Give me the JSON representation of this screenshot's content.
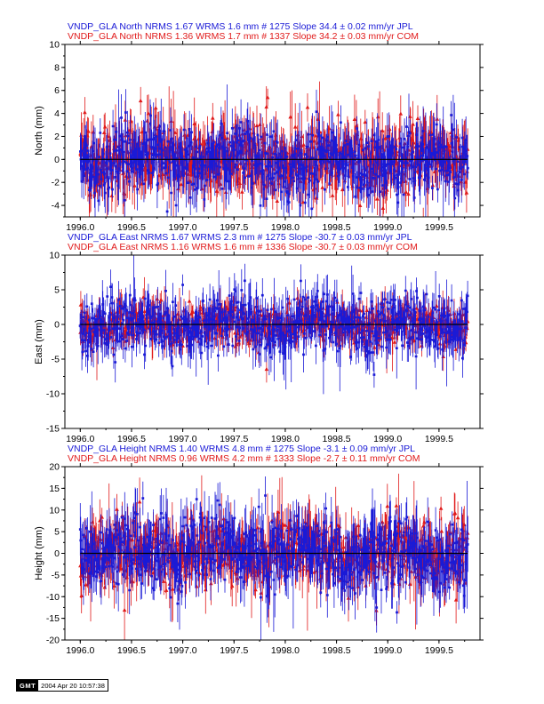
{
  "colors": {
    "jpl": "#1a1ad6",
    "com": "#e01a1a",
    "axis": "#000000"
  },
  "stamp": {
    "logo": "GMT",
    "timestamp": "2004 Apr 20 10:57:38"
  },
  "chart_data": [
    {
      "type": "scatter",
      "component": "North",
      "ylabel": "North (mm)",
      "ylim": [
        -5,
        10
      ],
      "yticks": [
        -4,
        -2,
        0,
        2,
        4,
        6,
        8,
        10
      ],
      "xlim": [
        1995.85,
        1999.9
      ],
      "xticks": [
        1996.0,
        1996.5,
        1997.0,
        1997.5,
        1998.0,
        1998.5,
        1999.0,
        1999.5
      ],
      "title_lines": [
        {
          "text": "VNDP_GLA North NRMS 1.67 WRMS  1.6 mm # 1275 Slope   34.4 ±  0.02 mm/yr JPL",
          "series": "JPL"
        },
        {
          "text": "VNDP_GLA North NRMS 1.36 WRMS  1.7 mm # 1337 Slope  34.2 ±  0.03 mm/yr COM",
          "series": "COM"
        }
      ],
      "series": [
        {
          "name": "JPL",
          "count": 1275,
          "wrms": 1.6,
          "x_range": [
            1996.0,
            1999.78
          ]
        },
        {
          "name": "COM",
          "count": 1337,
          "wrms": 1.7,
          "x_range": [
            1996.0,
            1999.78
          ]
        }
      ]
    },
    {
      "type": "scatter",
      "component": "East",
      "ylabel": "East (mm)",
      "ylim": [
        -15,
        10
      ],
      "yticks": [
        -15,
        -10,
        -5,
        0,
        5,
        10
      ],
      "xlim": [
        1995.85,
        1999.9
      ],
      "xticks": [
        1996.0,
        1996.5,
        1997.0,
        1997.5,
        1998.0,
        1998.5,
        1999.0,
        1999.5
      ],
      "title_lines": [
        {
          "text": "VNDP_GLA East NRMS 1.67 WRMS  2.3 mm # 1275 Slope  -30.7 ±  0.03 mm/yr JPL",
          "series": "JPL"
        },
        {
          "text": "VNDP_GLA East NRMS 1.16 WRMS  1.6 mm # 1336 Slope  -30.7 ±  0.03 mm/yr COM",
          "series": "COM"
        }
      ],
      "series": [
        {
          "name": "JPL",
          "count": 1275,
          "wrms": 2.3,
          "x_range": [
            1996.0,
            1999.78
          ]
        },
        {
          "name": "COM",
          "count": 1336,
          "wrms": 1.6,
          "x_range": [
            1996.0,
            1999.78
          ]
        }
      ]
    },
    {
      "type": "scatter",
      "component": "Height",
      "ylabel": "Height (mm)",
      "ylim": [
        -20,
        20
      ],
      "yticks": [
        -20,
        -15,
        -10,
        -5,
        0,
        5,
        10,
        15,
        20
      ],
      "xlim": [
        1995.85,
        1999.9
      ],
      "xticks": [
        1996.0,
        1996.5,
        1997.0,
        1997.5,
        1998.0,
        1998.5,
        1999.0,
        1999.5
      ],
      "title_lines": [
        {
          "text": "VNDP_GLA Height NRMS 1.40 WRMS  4.8 mm # 1275 Slope   -3.1 ±  0.09 mm/yr JPL",
          "series": "JPL"
        },
        {
          "text": "VNDP_GLA Height NRMS 0.96 WRMS  4.2 mm # 1333 Slope   -2.7 ±  0.11 mm/yr COM",
          "series": "COM"
        }
      ],
      "series": [
        {
          "name": "JPL",
          "count": 1275,
          "wrms": 4.8,
          "x_range": [
            1996.0,
            1999.78
          ]
        },
        {
          "name": "COM",
          "count": 1333,
          "wrms": 4.2,
          "x_range": [
            1996.0,
            1999.78
          ]
        }
      ]
    }
  ]
}
